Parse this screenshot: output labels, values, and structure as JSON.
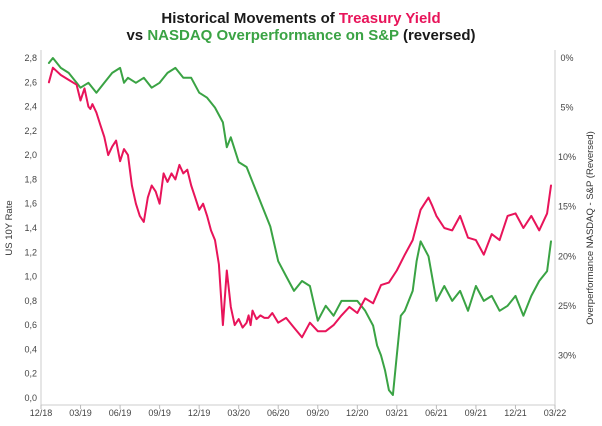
{
  "title": {
    "line1_prefix": "Historical Movements of ",
    "line1_highlight": "Treasury Yield",
    "line2_prefix": "vs ",
    "line2_highlight": "NASDAQ Overperformance on S&P",
    "line2_suffix": " (reversed)"
  },
  "colors": {
    "yield": "#e8145a",
    "nasdaq": "#3aa344"
  },
  "chart_data": {
    "type": "line",
    "title": "Historical Movements of Treasury Yield vs NASDAQ Overperformance on S&P (reversed)",
    "xlabel": "",
    "ylabel_left": "US 10Y Rate",
    "ylabel_right": "Overperformance NASDAQ - S&P (Reversed)",
    "x_tick_labels": [
      "12/18",
      "03/19",
      "06/19",
      "09/19",
      "12/19",
      "03/20",
      "06/20",
      "09/20",
      "12/20",
      "03/21",
      "06/21",
      "09/21",
      "12/21",
      "03/22"
    ],
    "xlim": [
      0,
      13
    ],
    "ylim_left": [
      0.0,
      2.8
    ],
    "ylim_right": [
      0,
      34.3
    ],
    "right_axis_reversed": true,
    "y_left_ticks": [
      "0,0",
      "0,2",
      "0,4",
      "0,6",
      "0,8",
      "1,0",
      "1,2",
      "1,4",
      "1,6",
      "1,8",
      "2,0",
      "2,2",
      "2,4",
      "2,6",
      "2,8"
    ],
    "y_right_ticks": [
      "0%",
      "5%",
      "10%",
      "15%",
      "20%",
      "25%",
      "30%"
    ],
    "y_right_tick_values": [
      0,
      5,
      10,
      15,
      20,
      25,
      30
    ],
    "series": [
      {
        "name": "US 10Y Rate",
        "axis": "left",
        "x": [
          0.2,
          0.3,
          0.5,
          0.7,
          0.9,
          1.0,
          1.1,
          1.2,
          1.25,
          1.3,
          1.4,
          1.5,
          1.6,
          1.7,
          1.8,
          1.9,
          2.0,
          2.1,
          2.2,
          2.3,
          2.4,
          2.5,
          2.6,
          2.7,
          2.8,
          2.9,
          3.0,
          3.1,
          3.2,
          3.3,
          3.4,
          3.5,
          3.6,
          3.7,
          3.8,
          3.9,
          4.0,
          4.1,
          4.2,
          4.3,
          4.4,
          4.5,
          4.6,
          4.7,
          4.8,
          4.9,
          5.0,
          5.1,
          5.2,
          5.25,
          5.3,
          5.35,
          5.45,
          5.55,
          5.65,
          5.75,
          5.85,
          6.0,
          6.2,
          6.4,
          6.6,
          6.8,
          7.0,
          7.2,
          7.4,
          7.6,
          7.8,
          8.0,
          8.2,
          8.4,
          8.6,
          8.8,
          9.0,
          9.2,
          9.4,
          9.6,
          9.7,
          9.8,
          9.9,
          10.0,
          10.2,
          10.4,
          10.6,
          10.8,
          11.0,
          11.2,
          11.4,
          11.6,
          11.8,
          12.0,
          12.2,
          12.4,
          12.6,
          12.8,
          12.9
        ],
        "values": [
          2.6,
          2.72,
          2.66,
          2.62,
          2.58,
          2.45,
          2.55,
          2.4,
          2.38,
          2.42,
          2.35,
          2.25,
          2.15,
          2.0,
          2.07,
          2.12,
          1.95,
          2.05,
          2.0,
          1.75,
          1.6,
          1.5,
          1.45,
          1.65,
          1.75,
          1.7,
          1.6,
          1.85,
          1.78,
          1.85,
          1.8,
          1.92,
          1.85,
          1.88,
          1.75,
          1.65,
          1.55,
          1.6,
          1.5,
          1.38,
          1.3,
          1.1,
          0.6,
          1.05,
          0.75,
          0.6,
          0.65,
          0.58,
          0.62,
          0.68,
          0.6,
          0.72,
          0.65,
          0.68,
          0.66,
          0.66,
          0.7,
          0.62,
          0.66,
          0.58,
          0.5,
          0.62,
          0.55,
          0.55,
          0.6,
          0.68,
          0.75,
          0.7,
          0.82,
          0.78,
          0.93,
          0.95,
          1.05,
          1.18,
          1.3,
          1.55,
          1.6,
          1.65,
          1.58,
          1.5,
          1.4,
          1.38,
          1.5,
          1.32,
          1.3,
          1.18,
          1.35,
          1.3,
          1.5,
          1.52,
          1.4,
          1.5,
          1.38,
          1.52,
          1.75
        ]
      },
      {
        "name": "Overperformance NASDAQ - S&P (Reversed)",
        "axis": "right",
        "x": [
          0.2,
          0.3,
          0.5,
          0.7,
          0.9,
          1.0,
          1.2,
          1.4,
          1.6,
          1.8,
          2.0,
          2.1,
          2.2,
          2.4,
          2.6,
          2.8,
          3.0,
          3.2,
          3.4,
          3.6,
          3.8,
          4.0,
          4.2,
          4.4,
          4.6,
          4.7,
          4.8,
          5.0,
          5.2,
          5.4,
          5.6,
          5.8,
          6.0,
          6.2,
          6.4,
          6.6,
          6.8,
          7.0,
          7.2,
          7.4,
          7.6,
          7.8,
          8.0,
          8.2,
          8.4,
          8.5,
          8.6,
          8.7,
          8.8,
          8.9,
          9.0,
          9.1,
          9.2,
          9.3,
          9.4,
          9.5,
          9.6,
          9.8,
          10.0,
          10.2,
          10.4,
          10.6,
          10.8,
          11.0,
          11.2,
          11.4,
          11.6,
          11.8,
          12.0,
          12.2,
          12.4,
          12.6,
          12.8,
          12.9
        ],
        "values": [
          0.5,
          0.0,
          1.0,
          1.5,
          2.5,
          3.0,
          2.5,
          3.5,
          2.5,
          1.5,
          1.0,
          2.5,
          2.0,
          2.5,
          2.0,
          3.0,
          2.5,
          1.5,
          1.0,
          2.0,
          2.0,
          3.5,
          4.0,
          5.0,
          6.5,
          9.0,
          8.0,
          10.5,
          11.0,
          13.0,
          15.0,
          17.0,
          20.5,
          22.0,
          23.5,
          22.5,
          23.0,
          26.5,
          25.0,
          26.0,
          24.5,
          24.5,
          24.5,
          25.5,
          27.0,
          29.0,
          30.0,
          31.5,
          33.5,
          34.0,
          30.0,
          26.0,
          25.5,
          24.5,
          23.5,
          20.5,
          18.5,
          20.0,
          24.5,
          23.0,
          24.5,
          23.5,
          25.5,
          23.0,
          24.5,
          24.0,
          25.5,
          25.0,
          24.0,
          26.0,
          24.0,
          22.5,
          21.5,
          18.5
        ]
      }
    ]
  }
}
